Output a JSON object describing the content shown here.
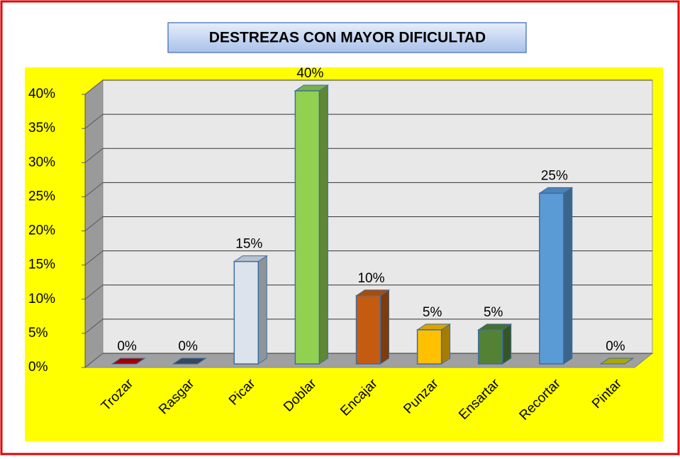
{
  "chart_data": {
    "type": "bar3d",
    "title": "DESTREZAS CON MAYOR DIFICULTAD",
    "categories": [
      "Trozar",
      "Rasgar",
      "Picar",
      "Doblar",
      "Encajar",
      "Punzar",
      "Ensartar",
      "Recortar",
      "Pintar"
    ],
    "values": [
      0,
      0,
      15,
      40,
      10,
      5,
      5,
      25,
      0
    ],
    "value_labels": [
      "0%",
      "0%",
      "15%",
      "40%",
      "10%",
      "5%",
      "5%",
      "25%",
      "0%"
    ],
    "colors": [
      "#c00000",
      "#44546a",
      "#dce3ec",
      "#92d050",
      "#c55a11",
      "#ffc000",
      "#548235",
      "#5b9bd5",
      "#c9c300"
    ],
    "ylim": [
      0,
      40
    ],
    "yticks": [
      {
        "value": 0,
        "label": "0%"
      },
      {
        "value": 5,
        "label": "5%"
      },
      {
        "value": 10,
        "label": "10%"
      },
      {
        "value": 15,
        "label": "15%"
      },
      {
        "value": 20,
        "label": "20%"
      },
      {
        "value": 25,
        "label": "25%"
      },
      {
        "value": 30,
        "label": "30%"
      },
      {
        "value": 35,
        "label": "35%"
      },
      {
        "value": 40,
        "label": "40%"
      }
    ],
    "grid": true
  }
}
